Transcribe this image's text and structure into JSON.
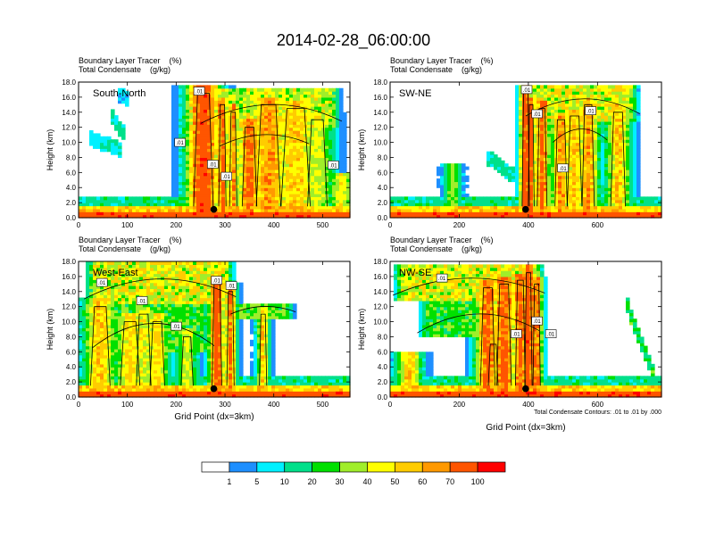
{
  "title": "2014-02-28_06:00:00",
  "colors": {
    "levels": [
      "#ffffff",
      "#1e8fff",
      "#00f0ff",
      "#00e08a",
      "#00e000",
      "#a0ee2a",
      "#ffff00",
      "#ffcc00",
      "#ff9900",
      "#ff5500",
      "#ff0000"
    ],
    "contour": "#000000",
    "marker": "#000000"
  },
  "chart_data": [
    {
      "type": "heatmap",
      "header_lines": [
        "Boundary Layer Tracer    (%)",
        "Total Condensate    (g/kg)"
      ],
      "panel_label": "South-North",
      "ylabel": "Height (km)",
      "xlabel": "",
      "ylim": [
        0,
        18
      ],
      "yticks": [
        "0.0",
        "2.0",
        "4.0",
        "6.0",
        "8.0",
        "10.0",
        "12.0",
        "14.0",
        "16.0",
        "18.0"
      ],
      "xlim": [
        0,
        556
      ],
      "xticks": [
        0,
        100,
        200,
        300,
        400,
        500
      ],
      "marker": {
        "x": 277,
        "y": 1.1
      },
      "contour_labels": [
        {
          "text": ".01",
          "x": 247,
          "y": 16.8
        },
        {
          "text": ".01",
          "x": 208,
          "y": 10.0
        },
        {
          "text": ".01",
          "x": 275,
          "y": 7.1
        },
        {
          "text": ".01",
          "x": 303,
          "y": 5.5
        },
        {
          "text": ".01",
          "x": 522,
          "y": 7.0
        }
      ]
    },
    {
      "type": "heatmap",
      "header_lines": [
        "Boundary Layer Tracer    (%)",
        "Total Condensate    (g/kg)"
      ],
      "panel_label": "SW-NE",
      "ylabel": "Height (km)",
      "xlabel": "",
      "ylim": [
        0,
        18
      ],
      "yticks": [
        "0.0",
        "2.0",
        "4.0",
        "6.0",
        "8.0",
        "10.0",
        "12.0",
        "14.0",
        "16.0",
        "18.0"
      ],
      "xlim": [
        0,
        785
      ],
      "xticks": [
        0,
        200,
        400,
        600
      ],
      "marker": {
        "x": 392,
        "y": 1.1
      },
      "contour_labels": [
        {
          "text": ".01",
          "x": 395,
          "y": 17.0
        },
        {
          "text": ".01",
          "x": 425,
          "y": 13.8
        },
        {
          "text": ".01",
          "x": 580,
          "y": 14.2
        },
        {
          "text": ".01",
          "x": 500,
          "y": 6.6
        }
      ]
    },
    {
      "type": "heatmap",
      "header_lines": [
        "Boundary Layer Tracer    (%)",
        "Total Condensate    (g/kg)"
      ],
      "panel_label": "West-East",
      "ylabel": "Height (km)",
      "xlabel": "Grid Point (dx=3km)",
      "ylim": [
        0,
        18
      ],
      "yticks": [
        "0.0",
        "2.0",
        "4.0",
        "6.0",
        "8.0",
        "10.0",
        "12.0",
        "14.0",
        "16.0",
        "18.0"
      ],
      "xlim": [
        0,
        556
      ],
      "xticks": [
        0,
        100,
        200,
        300,
        400,
        500
      ],
      "marker": {
        "x": 277,
        "y": 1.1
      },
      "contour_labels": [
        {
          "text": ".01",
          "x": 48,
          "y": 15.2
        },
        {
          "text": ".01",
          "x": 130,
          "y": 12.8
        },
        {
          "text": ".01",
          "x": 283,
          "y": 15.5
        },
        {
          "text": ".01",
          "x": 313,
          "y": 14.8
        },
        {
          "text": ".01",
          "x": 200,
          "y": 9.4
        }
      ]
    },
    {
      "type": "heatmap",
      "header_lines": [
        "Boundary Layer Tracer    (%)",
        "Total Condensate    (g/kg)"
      ],
      "panel_label": "NW-SE",
      "ylabel": "Height (km)",
      "xlabel": "Grid Point (dx=3km)",
      "ylim": [
        0,
        18
      ],
      "yticks": [
        "0.0",
        "2.0",
        "4.0",
        "6.0",
        "8.0",
        "10.0",
        "12.0",
        "14.0",
        "16.0",
        "18.0"
      ],
      "xlim": [
        0,
        785
      ],
      "xticks": [
        0,
        200,
        400,
        600
      ],
      "marker": {
        "x": 392,
        "y": 1.1
      },
      "contour_labels": [
        {
          "text": ".01",
          "x": 150,
          "y": 15.8
        },
        {
          "text": ".01",
          "x": 425,
          "y": 10.1
        },
        {
          "text": ".01",
          "x": 365,
          "y": 8.4
        },
        {
          "text": ".01",
          "x": 465,
          "y": 8.4
        }
      ],
      "footnote": "Total Condensate Contours: .01 to .01 by .000"
    }
  ],
  "colorbar": {
    "labels": [
      "1",
      "5",
      "10",
      "20",
      "30",
      "40",
      "50",
      "60",
      "70",
      "100"
    ],
    "unit": "%"
  }
}
